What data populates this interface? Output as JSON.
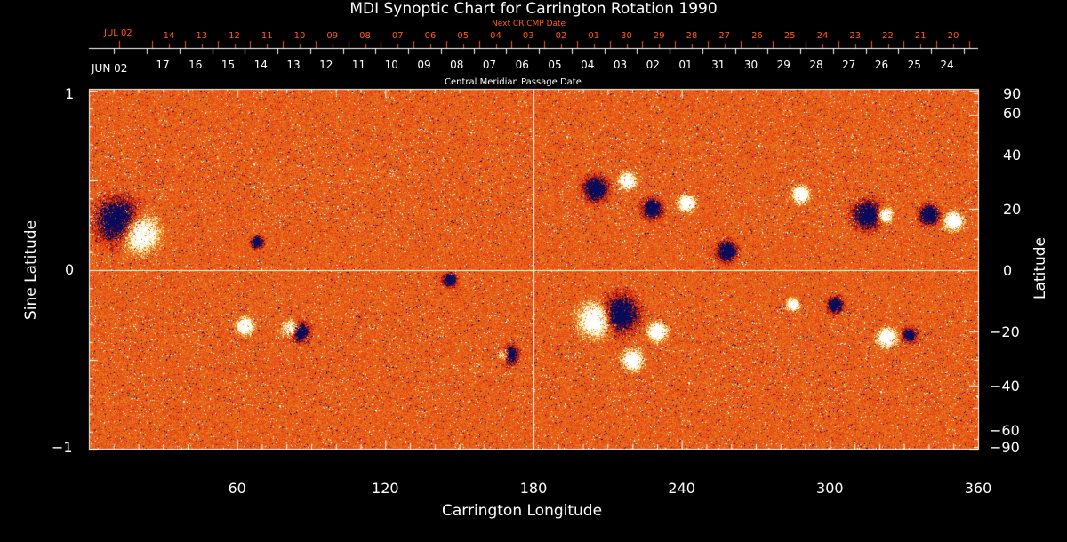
{
  "chart_data": {
    "type": "heatmap",
    "title": "MDI Synoptic Chart for Carrington Rotation 1990",
    "xlabel": "Carrington Longitude",
    "ylabel_left": "Sine Latitude",
    "ylabel_right": "Latitude",
    "top_axis_label": "Central Meridian Passage Date",
    "top_orange_axis_label": "Next CR CMP Date",
    "xlim": [
      0,
      360
    ],
    "ylim_left": [
      -1,
      1
    ],
    "x_ticks": [
      "60",
      "120",
      "180",
      "240",
      "300",
      "360"
    ],
    "y_ticks_left": [
      "1",
      "0",
      "−1"
    ],
    "y_ticks_right": [
      "90",
      "60",
      "40",
      "20",
      "0",
      "−20",
      "−40",
      "−60",
      "−90"
    ],
    "top_white_start": "JUN 02",
    "top_white_ticks": [
      "17",
      "16",
      "15",
      "14",
      "13",
      "12",
      "11",
      "10",
      "09",
      "08",
      "07",
      "06",
      "05",
      "04",
      "03",
      "02",
      "01",
      "31",
      "30",
      "29",
      "28",
      "27",
      "26",
      "25",
      "24"
    ],
    "top_orange_start": "JUL 02",
    "top_orange_ticks": [
      "14",
      "13",
      "12",
      "11",
      "10",
      "09",
      "08",
      "07",
      "06",
      "05",
      "04",
      "03",
      "02",
      "01",
      "30",
      "29",
      "28",
      "27",
      "26",
      "25",
      "24",
      "23",
      "22",
      "21",
      "20"
    ],
    "grid": "lines at longitude 180 and latitude 0",
    "colors": {
      "background_field": "#e8501a",
      "positive": "#ffffff",
      "negative": "#0a0a60",
      "axis": "#ffffff",
      "orange_axis": "#ff5a1a"
    }
  }
}
